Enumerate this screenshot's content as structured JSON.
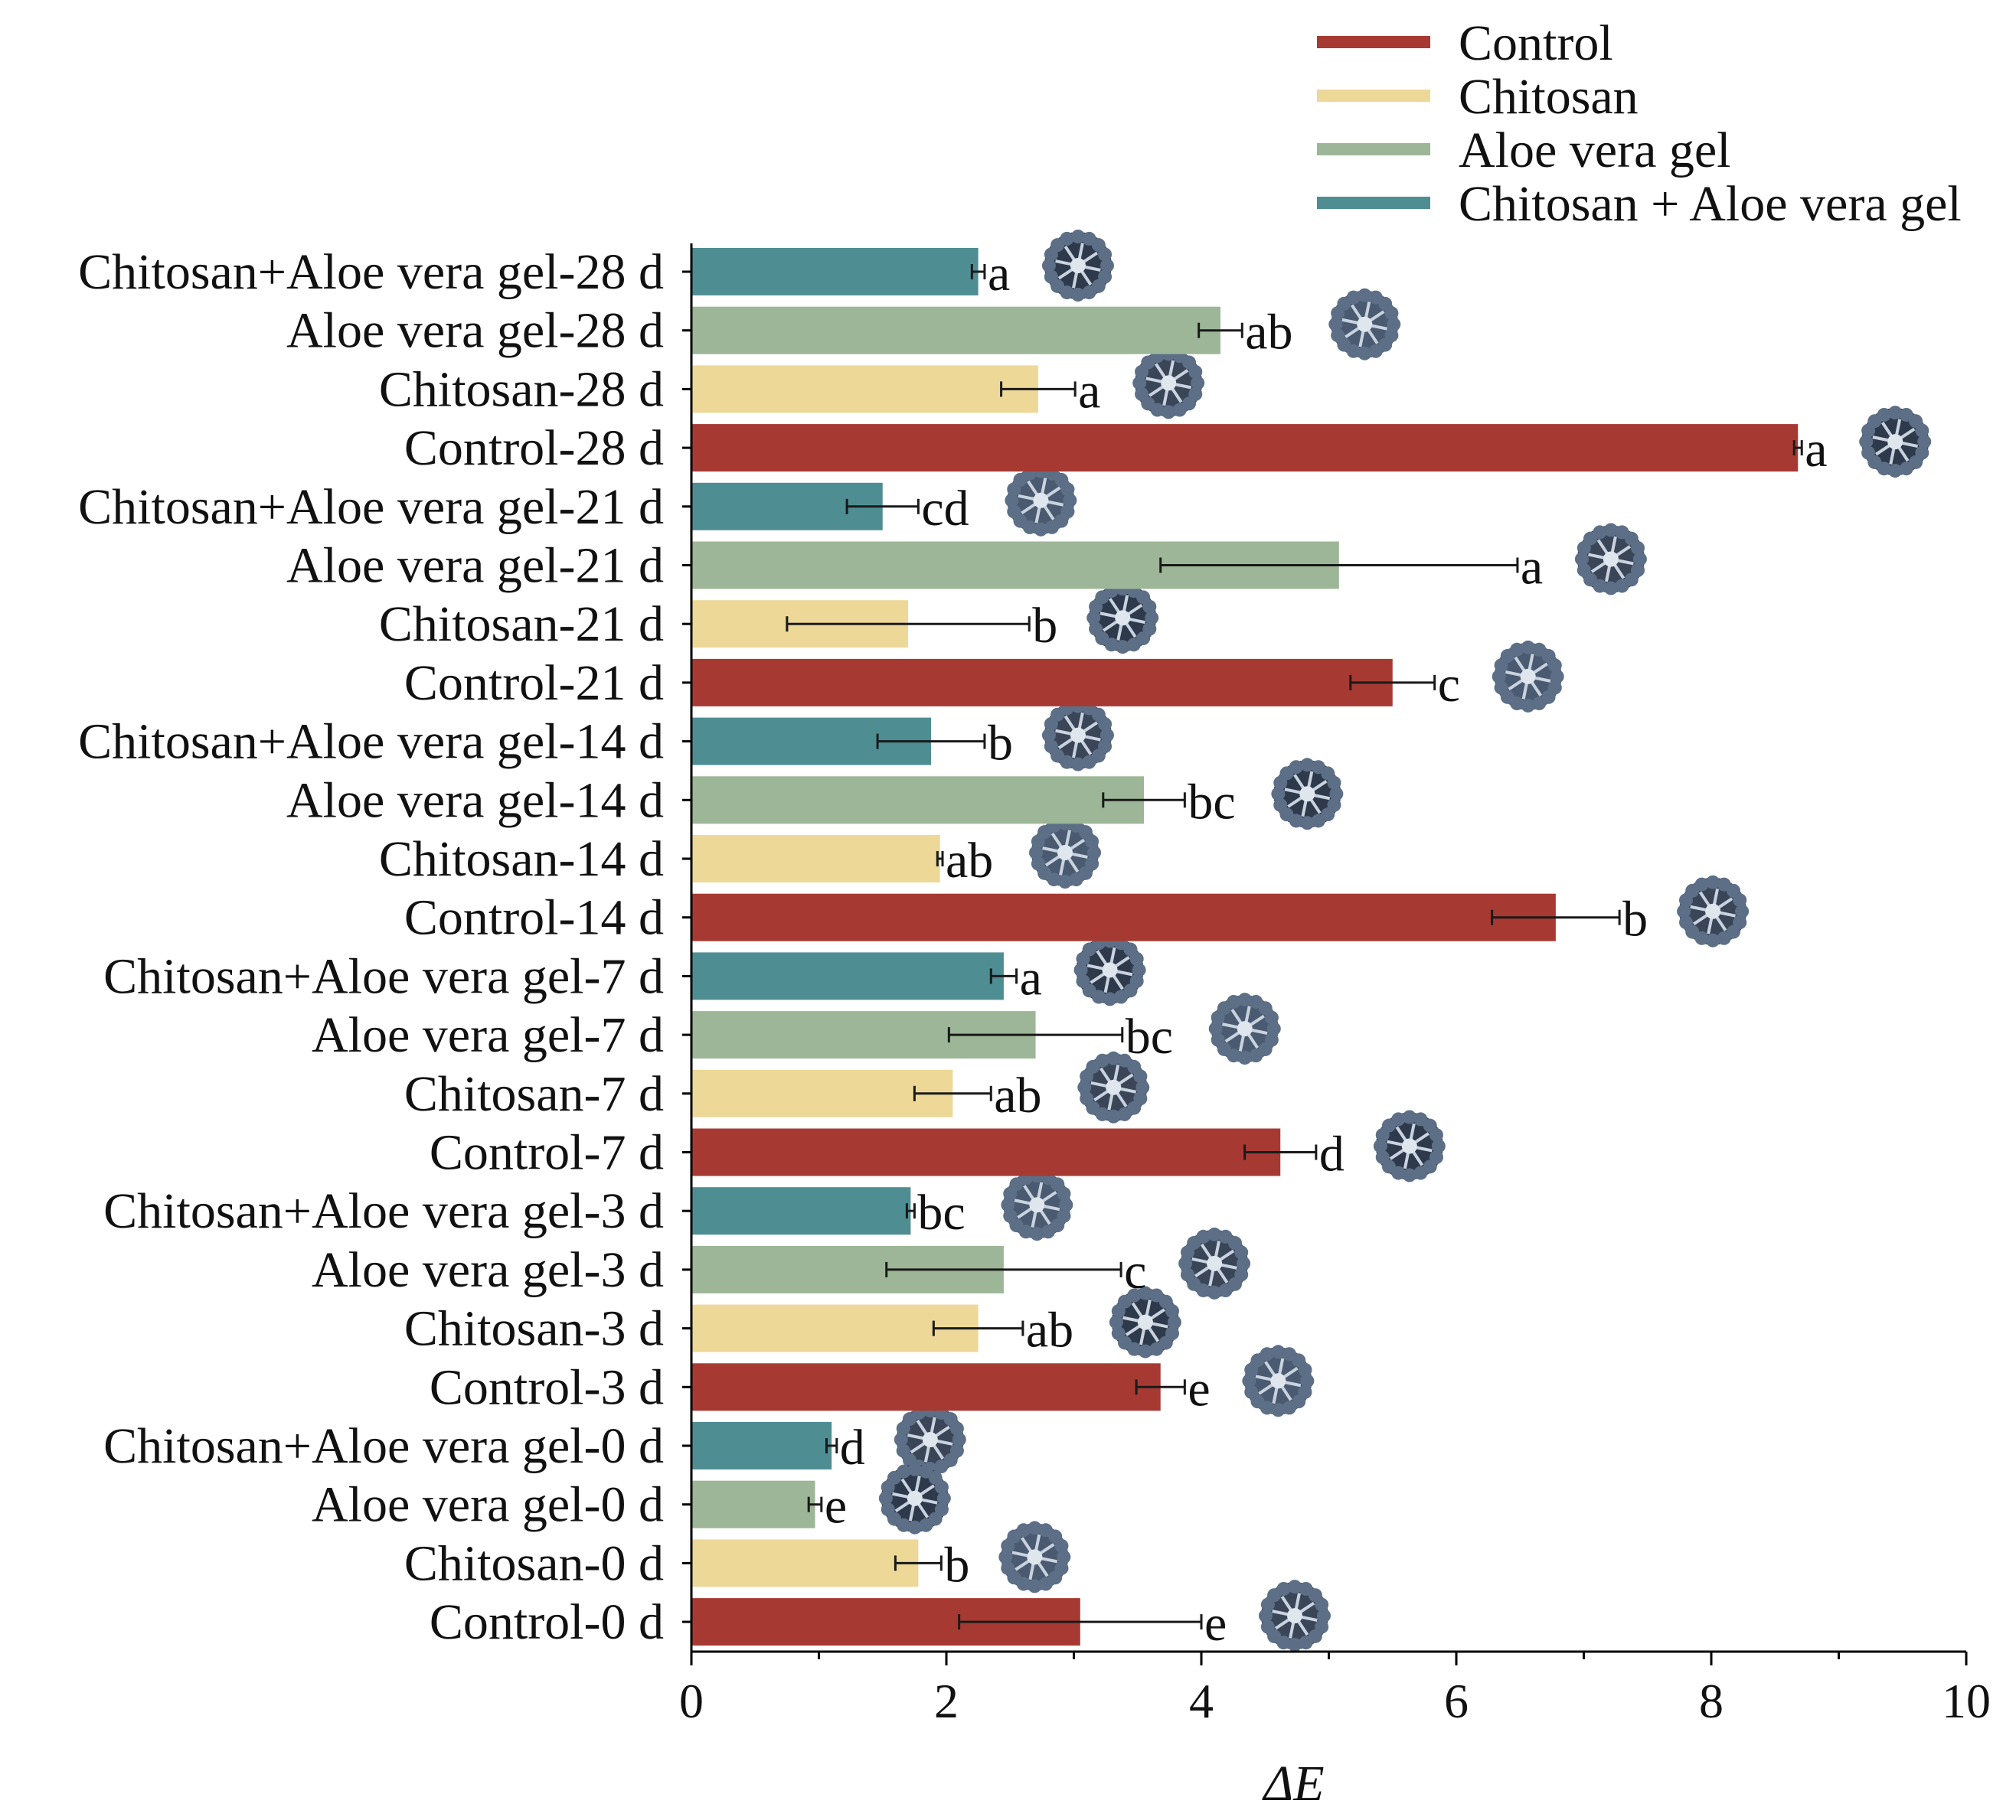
{
  "chart_data": {
    "type": "bar",
    "orientation": "horizontal",
    "xlabel": "ΔE",
    "xlim": [
      0,
      10
    ],
    "xticks": [
      "0",
      "2",
      "4",
      "6",
      "8",
      "10"
    ],
    "legend": {
      "placement": "top-right",
      "entries": [
        {
          "label": "Control",
          "color": "#A63A32"
        },
        {
          "label": "Chitosan",
          "color": "#EDD898"
        },
        {
          "label": "Aloe vera gel",
          "color": "#9DB697"
        },
        {
          "label": "Chitosan + Aloe vera gel",
          "color": "#4E8E93"
        }
      ]
    },
    "bars": [
      {
        "label": "Chitosan+Aloe vera gel-28 d",
        "group": 3,
        "value": 2.25,
        "err": 0.05,
        "sig": "a"
      },
      {
        "label": "Aloe vera gel-28 d",
        "group": 2,
        "value": 4.15,
        "err": 0.17,
        "sig": "ab"
      },
      {
        "label": "Chitosan-28 d",
        "group": 1,
        "value": 2.72,
        "err": 0.29,
        "sig": "a"
      },
      {
        "label": "Control-28 d",
        "group": 0,
        "value": 8.68,
        "err": 0.03,
        "sig": "a"
      },
      {
        "label": "Chitosan+Aloe vera gel-21 d",
        "group": 3,
        "value": 1.5,
        "err": 0.28,
        "sig": "cd"
      },
      {
        "label": "Aloe vera gel-21 d",
        "group": 2,
        "value": 5.08,
        "err": 1.4,
        "sig": "a"
      },
      {
        "label": "Chitosan-21 d",
        "group": 1,
        "value": 1.7,
        "err": 0.95,
        "sig": "b"
      },
      {
        "label": "Control-21 d",
        "group": 0,
        "value": 5.5,
        "err": 0.33,
        "sig": "c"
      },
      {
        "label": "Chitosan+Aloe vera gel-14 d",
        "group": 3,
        "value": 1.88,
        "err": 0.42,
        "sig": "b"
      },
      {
        "label": "Aloe vera gel-14 d",
        "group": 2,
        "value": 3.55,
        "err": 0.32,
        "sig": "bc"
      },
      {
        "label": "Chitosan-14 d",
        "group": 1,
        "value": 1.95,
        "err": 0.02,
        "sig": "ab"
      },
      {
        "label": "Control-14 d",
        "group": 0,
        "value": 6.78,
        "err": 0.5,
        "sig": "b"
      },
      {
        "label": "Chitosan+Aloe vera gel-7 d",
        "group": 3,
        "value": 2.45,
        "err": 0.1,
        "sig": "a"
      },
      {
        "label": "Aloe vera gel-7 d",
        "group": 2,
        "value": 2.7,
        "err": 0.68,
        "sig": "bc"
      },
      {
        "label": "Chitosan-7 d",
        "group": 1,
        "value": 2.05,
        "err": 0.3,
        "sig": "ab"
      },
      {
        "label": "Control-7 d",
        "group": 0,
        "value": 4.62,
        "err": 0.28,
        "sig": "d"
      },
      {
        "label": "Chitosan+Aloe vera gel-3 d",
        "group": 3,
        "value": 1.72,
        "err": 0.03,
        "sig": "bc"
      },
      {
        "label": "Aloe vera gel-3 d",
        "group": 2,
        "value": 2.45,
        "err": 0.92,
        "sig": "c"
      },
      {
        "label": "Chitosan-3 d",
        "group": 1,
        "value": 2.25,
        "err": 0.35,
        "sig": "ab"
      },
      {
        "label": "Control-3 d",
        "group": 0,
        "value": 3.68,
        "err": 0.19,
        "sig": "e"
      },
      {
        "label": "Chitosan+Aloe vera gel-0 d",
        "group": 3,
        "value": 1.1,
        "err": 0.04,
        "sig": "d"
      },
      {
        "label": "Aloe vera gel-0 d",
        "group": 2,
        "value": 0.97,
        "err": 0.05,
        "sig": "e"
      },
      {
        "label": "Chitosan-0 d",
        "group": 1,
        "value": 1.78,
        "err": 0.18,
        "sig": "b"
      },
      {
        "label": "Control-0 d",
        "group": 0,
        "value": 3.05,
        "err": 0.95,
        "sig": "e"
      }
    ],
    "grid": false
  }
}
